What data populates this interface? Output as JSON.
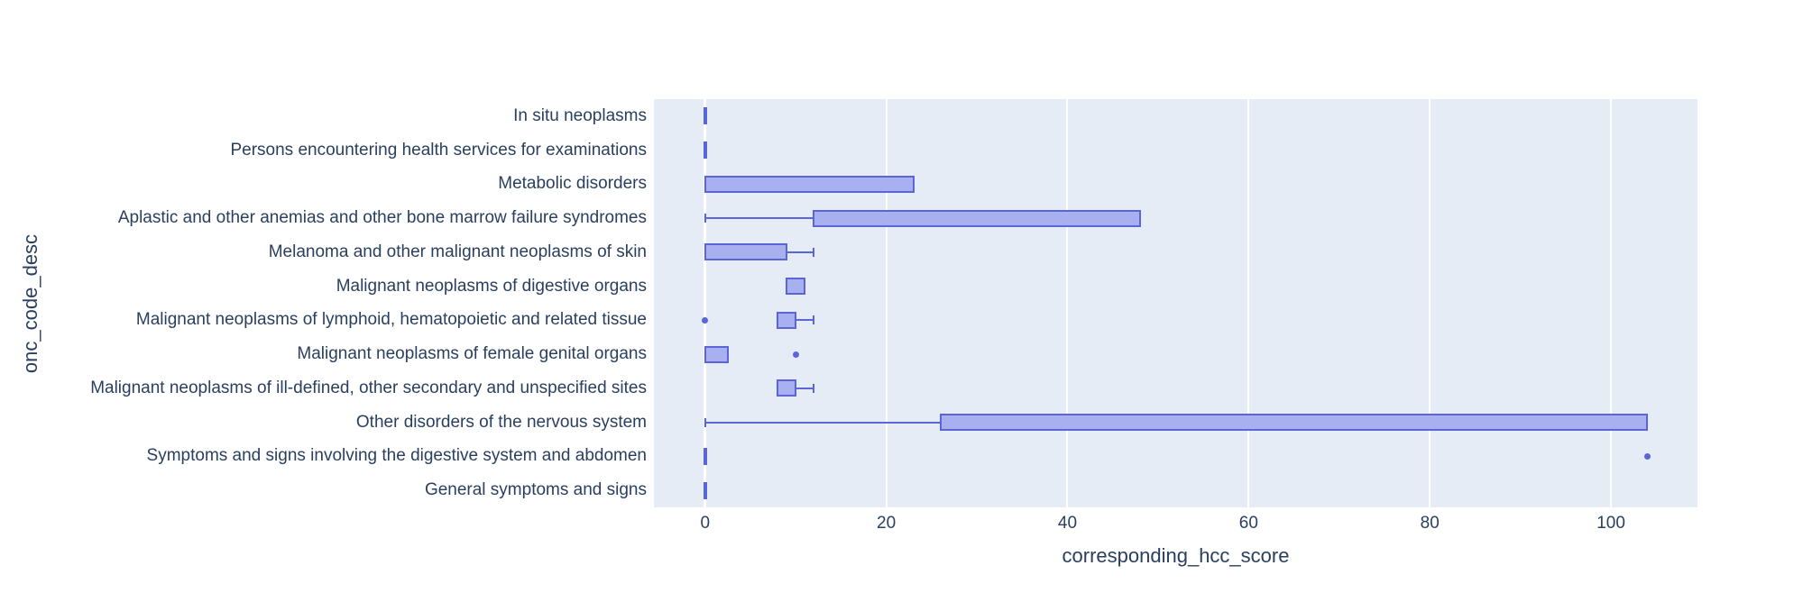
{
  "chart_data": {
    "type": "box",
    "orientation": "horizontal",
    "title": "",
    "xlabel": "corresponding_hcc_score",
    "ylabel": "onc_code_desc",
    "x_ticks": [
      0,
      20,
      40,
      60,
      80,
      100
    ],
    "x_range": [
      -5.65,
      109.55
    ],
    "grid": true,
    "legend": "none",
    "rows": [
      {
        "label": "In situ neoplasms",
        "lo": 0,
        "q1": 0,
        "median": 0,
        "q3": 0,
        "hi": 0,
        "outliers": []
      },
      {
        "label": "Persons encountering health services for examinations",
        "lo": 0,
        "q1": 0,
        "median": 0,
        "q3": 0,
        "hi": 0,
        "outliers": []
      },
      {
        "label": "Metabolic disorders",
        "lo": 0,
        "q1": 0,
        "median": 0,
        "q3": 23,
        "hi": 23,
        "outliers": []
      },
      {
        "label": "Aplastic and other anemias and other bone marrow failure syndromes",
        "lo": 0,
        "q1": 12,
        "median": 12,
        "q3": 48,
        "hi": 48,
        "outliers": []
      },
      {
        "label": "Melanoma and other malignant neoplasms of skin",
        "lo": 0,
        "q1": 0,
        "median": 0,
        "q3": 9,
        "hi": 12,
        "outliers": []
      },
      {
        "label": "Malignant neoplasms of digestive organs",
        "lo": 9,
        "q1": 9,
        "median": 9,
        "q3": 11,
        "hi": 11,
        "outliers": []
      },
      {
        "label": "Malignant neoplasms of lymphoid, hematopoietic and related tissue",
        "lo": 8,
        "q1": 8,
        "median": 8,
        "q3": 10,
        "hi": 12,
        "outliers": [
          0
        ]
      },
      {
        "label": "Malignant neoplasms of female genital organs",
        "lo": 0,
        "q1": 0,
        "median": 0,
        "q3": 2.5,
        "hi": 2.5,
        "outliers": [
          10
        ]
      },
      {
        "label": "Malignant neoplasms of ill-defined, other secondary and unspecified sites",
        "lo": 8,
        "q1": 8,
        "median": 8,
        "q3": 10,
        "hi": 12,
        "outliers": []
      },
      {
        "label": "Other disorders of the nervous system",
        "lo": 0,
        "q1": 26,
        "median": 26,
        "q3": 104,
        "hi": 104,
        "outliers": []
      },
      {
        "label": "Symptoms and signs involving the digestive system and abdomen",
        "lo": 0,
        "q1": 0,
        "median": 0,
        "q3": 0,
        "hi": 0,
        "outliers": [
          104
        ]
      },
      {
        "label": "General symptoms and signs",
        "lo": 0,
        "q1": 0,
        "median": 0,
        "q3": 0,
        "hi": 0,
        "outliers": []
      }
    ],
    "colors": {
      "plot_background": "#e5ecf6",
      "gridline": "#ffffff",
      "box_line": "#5b65d8",
      "box_fill": "#a9b0f0",
      "outlier": "#5b65d8",
      "text": "#2a3f5f",
      "canvas_background": "#ffffff"
    }
  }
}
